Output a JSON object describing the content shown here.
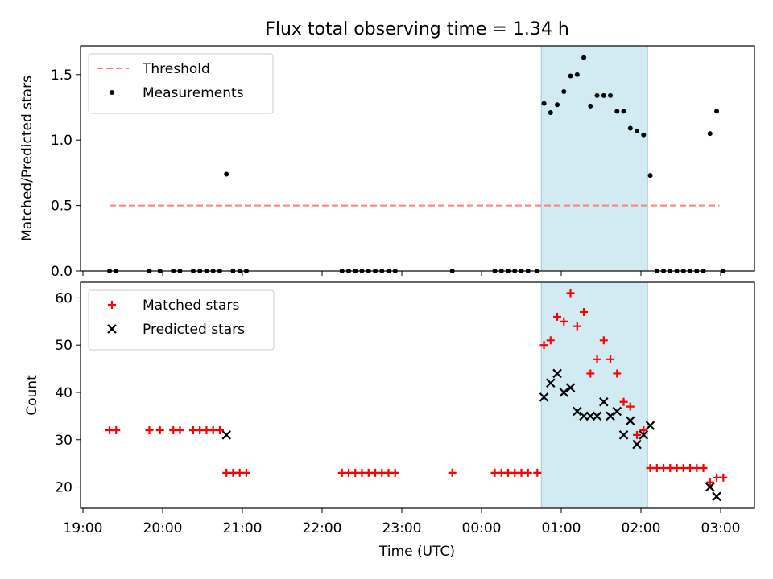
{
  "chart_data": [
    {
      "type": "scatter",
      "title": "Flux total observing time = 1.34 h",
      "ylabel": "Matched/Predicted stars",
      "xlabel": "",
      "ylim": [
        0,
        1.72
      ],
      "yticks": [
        0,
        0.5,
        1.0,
        1.5
      ],
      "ytick_labels": [
        "0.0",
        "0.5",
        "1.0",
        "1.5"
      ],
      "legend_position": "upper-left",
      "highlight_span": [
        "00:45",
        "02:05"
      ],
      "threshold": {
        "name": "Threshold",
        "y": 0.5,
        "x_start": "19:20",
        "x_end": "02:59",
        "color": "#ff7f7f",
        "style": "dashed"
      },
      "series": [
        {
          "name": "Measurements",
          "marker": "dot",
          "color": "#000000",
          "points": [
            [
              "19:20",
              0
            ],
            [
              "19:25",
              0
            ],
            [
              "19:50",
              0
            ],
            [
              "19:58",
              0
            ],
            [
              "20:08",
              0
            ],
            [
              "20:13",
              0
            ],
            [
              "20:23",
              0
            ],
            [
              "20:28",
              0
            ],
            [
              "20:33",
              0
            ],
            [
              "20:38",
              0
            ],
            [
              "20:43",
              0
            ],
            [
              "20:48",
              0.74
            ],
            [
              "20:53",
              0
            ],
            [
              "20:58",
              0
            ],
            [
              "21:03",
              0
            ],
            [
              "22:15",
              0
            ],
            [
              "22:20",
              0
            ],
            [
              "22:25",
              0
            ],
            [
              "22:30",
              0
            ],
            [
              "22:35",
              0
            ],
            [
              "22:40",
              0
            ],
            [
              "22:45",
              0
            ],
            [
              "22:50",
              0
            ],
            [
              "22:55",
              0
            ],
            [
              "23:38",
              0
            ],
            [
              "00:10",
              0
            ],
            [
              "00:15",
              0
            ],
            [
              "00:20",
              0
            ],
            [
              "00:25",
              0
            ],
            [
              "00:30",
              0
            ],
            [
              "00:35",
              0
            ],
            [
              "00:42",
              0
            ],
            [
              "00:47",
              1.28
            ],
            [
              "00:52",
              1.21
            ],
            [
              "00:57",
              1.27
            ],
            [
              "01:02",
              1.37
            ],
            [
              "01:07",
              1.49
            ],
            [
              "01:12",
              1.5
            ],
            [
              "01:17",
              1.63
            ],
            [
              "01:22",
              1.26
            ],
            [
              "01:27",
              1.34
            ],
            [
              "01:32",
              1.34
            ],
            [
              "01:37",
              1.34
            ],
            [
              "01:42",
              1.22
            ],
            [
              "01:47",
              1.22
            ],
            [
              "01:52",
              1.09
            ],
            [
              "01:57",
              1.07
            ],
            [
              "02:02",
              1.04
            ],
            [
              "02:07",
              0.73
            ],
            [
              "02:12",
              0
            ],
            [
              "02:17",
              0
            ],
            [
              "02:22",
              0
            ],
            [
              "02:27",
              0
            ],
            [
              "02:32",
              0
            ],
            [
              "02:37",
              0
            ],
            [
              "02:42",
              0
            ],
            [
              "02:47",
              0
            ],
            [
              "02:52",
              1.05
            ],
            [
              "02:57",
              1.22
            ],
            [
              "03:02",
              0
            ]
          ]
        }
      ]
    },
    {
      "type": "scatter",
      "title": "",
      "ylabel": "Count",
      "xlabel": "Time (UTC)",
      "ylim": [
        15.5,
        63.3
      ],
      "yticks": [
        20,
        30,
        40,
        50,
        60
      ],
      "ytick_labels": [
        "20",
        "30",
        "40",
        "50",
        "60"
      ],
      "xticks": [
        "19:00",
        "20:00",
        "21:00",
        "22:00",
        "23:00",
        "00:00",
        "01:00",
        "02:00",
        "03:00"
      ],
      "legend_position": "upper-left",
      "highlight_span": [
        "00:45",
        "02:05"
      ],
      "series": [
        {
          "name": "Matched stars",
          "marker": "plus",
          "color": "#ff0000",
          "points": [
            [
              "19:20",
              32
            ],
            [
              "19:25",
              32
            ],
            [
              "19:50",
              32
            ],
            [
              "19:58",
              32
            ],
            [
              "20:08",
              32
            ],
            [
              "20:13",
              32
            ],
            [
              "20:23",
              32
            ],
            [
              "20:28",
              32
            ],
            [
              "20:33",
              32
            ],
            [
              "20:38",
              32
            ],
            [
              "20:43",
              32
            ],
            [
              "20:48",
              23
            ],
            [
              "20:53",
              23
            ],
            [
              "20:58",
              23
            ],
            [
              "21:03",
              23
            ],
            [
              "22:15",
              23
            ],
            [
              "22:20",
              23
            ],
            [
              "22:25",
              23
            ],
            [
              "22:30",
              23
            ],
            [
              "22:35",
              23
            ],
            [
              "22:40",
              23
            ],
            [
              "22:45",
              23
            ],
            [
              "22:50",
              23
            ],
            [
              "22:55",
              23
            ],
            [
              "23:38",
              23
            ],
            [
              "00:10",
              23
            ],
            [
              "00:15",
              23
            ],
            [
              "00:20",
              23
            ],
            [
              "00:25",
              23
            ],
            [
              "00:30",
              23
            ],
            [
              "00:35",
              23
            ],
            [
              "00:42",
              23
            ],
            [
              "00:47",
              50
            ],
            [
              "00:52",
              51
            ],
            [
              "00:57",
              56
            ],
            [
              "01:02",
              55
            ],
            [
              "01:07",
              61
            ],
            [
              "01:12",
              54
            ],
            [
              "01:17",
              57
            ],
            [
              "01:22",
              44
            ],
            [
              "01:27",
              47
            ],
            [
              "01:32",
              51
            ],
            [
              "01:37",
              47
            ],
            [
              "01:42",
              44
            ],
            [
              "01:47",
              38
            ],
            [
              "01:52",
              37
            ],
            [
              "01:57",
              31
            ],
            [
              "02:02",
              32
            ],
            [
              "02:07",
              24
            ],
            [
              "02:12",
              24
            ],
            [
              "02:17",
              24
            ],
            [
              "02:22",
              24
            ],
            [
              "02:27",
              24
            ],
            [
              "02:32",
              24
            ],
            [
              "02:37",
              24
            ],
            [
              "02:42",
              24
            ],
            [
              "02:47",
              24
            ],
            [
              "02:52",
              21
            ],
            [
              "02:57",
              22
            ],
            [
              "03:02",
              22
            ]
          ]
        },
        {
          "name": "Predicted stars",
          "marker": "x",
          "color": "#000000",
          "points": [
            [
              "20:48",
              31
            ],
            [
              "00:47",
              39
            ],
            [
              "00:52",
              42
            ],
            [
              "00:57",
              44
            ],
            [
              "01:02",
              40
            ],
            [
              "01:07",
              41
            ],
            [
              "01:12",
              36
            ],
            [
              "01:17",
              35
            ],
            [
              "01:22",
              35
            ],
            [
              "01:27",
              35
            ],
            [
              "01:32",
              38
            ],
            [
              "01:37",
              35
            ],
            [
              "01:42",
              36
            ],
            [
              "01:47",
              31
            ],
            [
              "01:52",
              34
            ],
            [
              "01:57",
              29
            ],
            [
              "02:02",
              31
            ],
            [
              "02:07",
              33
            ],
            [
              "02:52",
              20
            ],
            [
              "02:57",
              18
            ]
          ]
        }
      ]
    }
  ]
}
